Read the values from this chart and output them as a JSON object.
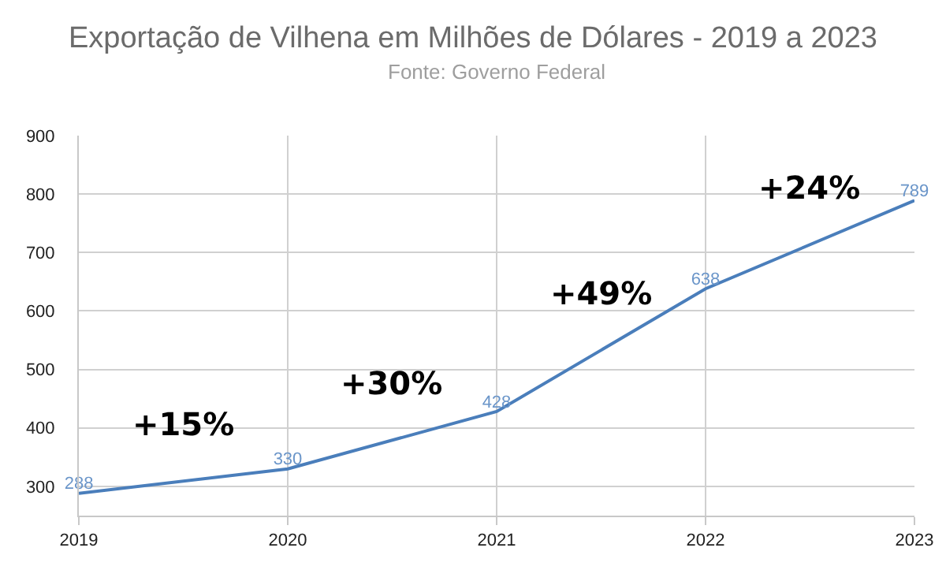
{
  "chart_data": {
    "type": "line",
    "title": "Exportação de Vilhena em Milhões de Dólares - 2019 a 2023",
    "subtitle": "Fonte: Governo Federal",
    "x": [
      2019,
      2020,
      2021,
      2022,
      2023
    ],
    "series": [
      {
        "color": "#4a7ebb",
        "values": [
          288,
          330,
          428,
          638,
          789
        ]
      }
    ],
    "xlim": [
      2019,
      2023
    ],
    "xticks": [
      2019,
      2020,
      2021,
      2022,
      2023
    ],
    "ylim": [
      250,
      900
    ],
    "yticks": [
      300,
      400,
      500,
      600,
      700,
      800,
      900
    ],
    "grid": true,
    "marker": "none",
    "line_style": "solid",
    "data_labels": true,
    "annotations": [
      "+15%",
      "+30%",
      "+49%",
      "+24%"
    ]
  }
}
